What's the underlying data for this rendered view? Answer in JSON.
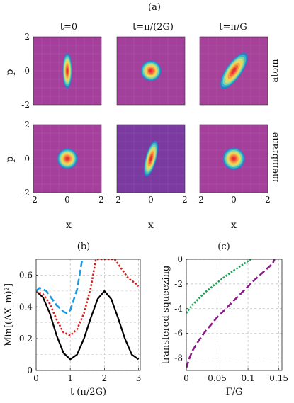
{
  "figure": {
    "label_a": "(a)",
    "label_b": "(b)",
    "label_c": "(c)",
    "col_titles": [
      "t=0",
      "t=π/(2G)",
      "t=π/G"
    ],
    "row_labels": [
      "atom",
      "membrane"
    ],
    "phase_xlabel": "x",
    "phase_ylabel": "p"
  },
  "chart_data": [
    {
      "type": "heatmap",
      "id": "phase-space-grid",
      "x_ticks": [
        -2,
        0,
        2
      ],
      "y_ticks": [
        -2,
        0,
        2
      ],
      "xlim": [
        -2,
        2
      ],
      "ylim": [
        -2,
        2
      ],
      "xlabel": "x",
      "ylabel": "p",
      "panels": [
        {
          "row": "atom",
          "time": "t=0",
          "center": [
            0,
            0
          ],
          "sigma_major": 0.45,
          "sigma_minor": 0.12,
          "angle_deg": 90,
          "background": "#a4409c"
        },
        {
          "row": "atom",
          "time": "t=π/(2G)",
          "center": [
            0,
            0
          ],
          "sigma_major": 0.26,
          "sigma_minor": 0.26,
          "angle_deg": 0,
          "background": "#a2409c"
        },
        {
          "row": "atom",
          "time": "t=π/G",
          "center": [
            0,
            0
          ],
          "sigma_major": 0.55,
          "sigma_minor": 0.2,
          "angle_deg": 55,
          "background": "#a64299"
        },
        {
          "row": "membrane",
          "time": "t=0",
          "center": [
            0,
            0
          ],
          "sigma_major": 0.26,
          "sigma_minor": 0.26,
          "angle_deg": 0,
          "background": "#a4409c"
        },
        {
          "row": "membrane",
          "time": "t=π/(2G)",
          "center": [
            0,
            0
          ],
          "sigma_major": 0.47,
          "sigma_minor": 0.14,
          "angle_deg": 75,
          "background": "#7a3aa0"
        },
        {
          "row": "membrane",
          "time": "t=π/G",
          "center": [
            0,
            0
          ],
          "sigma_major": 0.28,
          "sigma_minor": 0.28,
          "angle_deg": 0,
          "background": "#a4409c"
        }
      ]
    },
    {
      "type": "line",
      "id": "panel-b",
      "xlabel": "t (π/2G)",
      "ylabel": "Min[(ΔX_m)²]",
      "xlim": [
        0,
        3.05
      ],
      "ylim": [
        0,
        0.7
      ],
      "x_ticks": [
        0,
        1,
        2,
        3
      ],
      "y_ticks": [
        0,
        0.2,
        0.4,
        0.6
      ],
      "grid": true,
      "series": [
        {
          "style": "solid",
          "color": "#000000",
          "x": [
            0,
            0.2,
            0.4,
            0.6,
            0.8,
            1.0,
            1.2,
            1.4,
            1.6,
            1.8,
            2.0,
            2.2,
            2.4,
            2.6,
            2.8,
            3.0
          ],
          "y": [
            0.5,
            0.46,
            0.36,
            0.22,
            0.11,
            0.07,
            0.1,
            0.2,
            0.33,
            0.45,
            0.5,
            0.45,
            0.33,
            0.2,
            0.1,
            0.07
          ]
        },
        {
          "style": "dotted",
          "color": "#e01a1a",
          "x": [
            0,
            0.2,
            0.4,
            0.6,
            0.8,
            1.0,
            1.2,
            1.4,
            1.6,
            1.75,
            2.3,
            2.5,
            2.7,
            2.9,
            3.0
          ],
          "y": [
            0.5,
            0.48,
            0.42,
            0.32,
            0.24,
            0.22,
            0.26,
            0.36,
            0.52,
            0.7,
            0.7,
            0.64,
            0.58,
            0.55,
            0.53
          ]
        },
        {
          "style": "dashed",
          "color": "#1e9be0",
          "x": [
            0,
            0.1,
            0.2,
            0.3,
            0.4,
            0.6,
            0.8,
            0.9,
            1.0,
            1.2,
            1.35
          ],
          "y": [
            0.5,
            0.52,
            0.51,
            0.5,
            0.47,
            0.41,
            0.37,
            0.36,
            0.38,
            0.51,
            0.7
          ]
        }
      ]
    },
    {
      "type": "line",
      "id": "panel-c",
      "xlabel": "Γ/G",
      "ylabel": "transfered squeezing",
      "xlim": [
        0,
        0.155
      ],
      "ylim": [
        -9,
        0
      ],
      "x_ticks": [
        0,
        0.05,
        0.1,
        0.15
      ],
      "y_ticks": [
        0,
        -2,
        -4,
        -6,
        -8
      ],
      "grid": true,
      "series": [
        {
          "style": "dotted-thick",
          "color": "#18a050",
          "x": [
            0,
            0.01,
            0.02,
            0.03,
            0.04,
            0.05,
            0.06,
            0.07,
            0.08,
            0.09,
            0.1,
            0.105
          ],
          "y": [
            -4.35,
            -3.7,
            -3.2,
            -2.7,
            -2.3,
            -1.9,
            -1.5,
            -1.15,
            -0.8,
            -0.48,
            -0.15,
            0
          ]
        },
        {
          "style": "dashed",
          "color": "#8b1a8b",
          "x": [
            0,
            0.005,
            0.01,
            0.02,
            0.03,
            0.04,
            0.05,
            0.06,
            0.07,
            0.08,
            0.09,
            0.1,
            0.11,
            0.12,
            0.13,
            0.14,
            0.143
          ],
          "y": [
            -8.8,
            -8.0,
            -7.4,
            -6.6,
            -5.9,
            -5.3,
            -4.7,
            -4.2,
            -3.7,
            -3.2,
            -2.7,
            -2.2,
            -1.7,
            -1.25,
            -0.8,
            -0.35,
            0
          ]
        }
      ]
    }
  ]
}
